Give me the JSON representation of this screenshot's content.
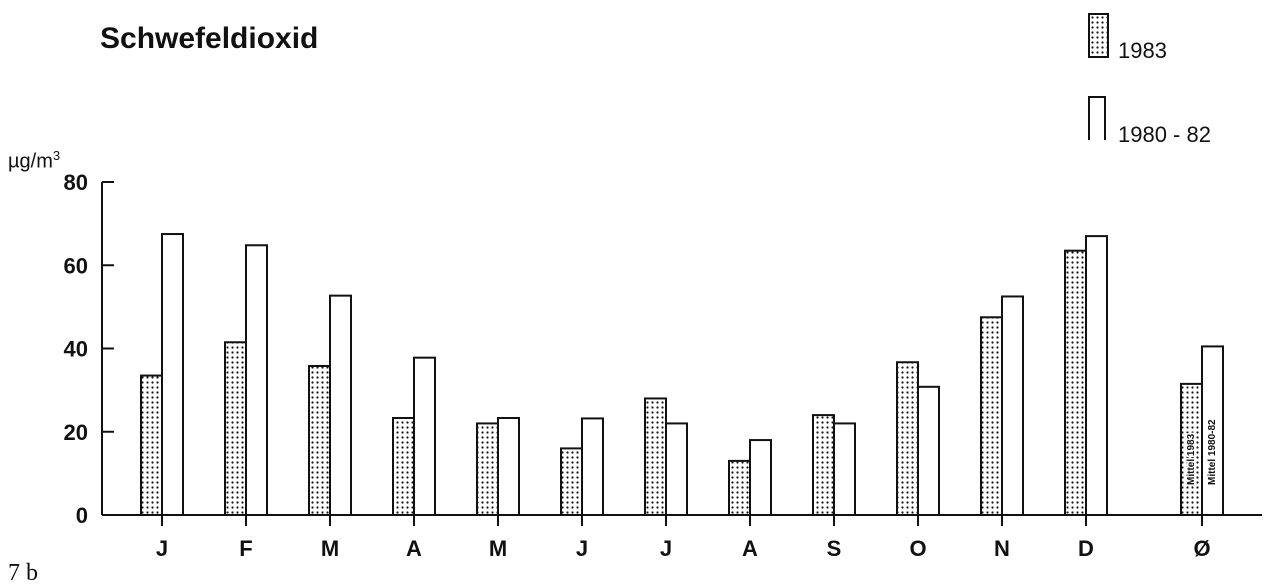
{
  "chart_data": {
    "type": "bar",
    "title": "Schwefeldioxid",
    "ylabel_unit": "µg/m",
    "ylabel_exp": "3",
    "ylim": [
      0,
      80
    ],
    "yticks": [
      0,
      20,
      40,
      60,
      80
    ],
    "categories": [
      "J",
      "F",
      "M",
      "A",
      "M",
      "J",
      "J",
      "A",
      "S",
      "O",
      "N",
      "D",
      "Ø"
    ],
    "series": [
      {
        "name": "1983",
        "pattern": "dotted",
        "values": [
          33.5,
          41.5,
          35.8,
          23.3,
          22,
          16,
          28,
          13,
          24,
          36.7,
          47.5,
          63.5,
          31.5
        ]
      },
      {
        "name": "1980 - 82",
        "pattern": "open",
        "values": [
          67.5,
          64.8,
          52.7,
          37.8,
          23.3,
          23.2,
          22,
          18,
          22,
          30.8,
          52.5,
          67,
          40.5
        ]
      }
    ],
    "bar_annotations": [
      "Mittel 1983",
      "Mittel 1980-82"
    ],
    "grid": false,
    "legend_position": "top-right",
    "colors": {
      "ink": "#111111",
      "background": "#ffffff"
    }
  },
  "figure_number": "7 b"
}
